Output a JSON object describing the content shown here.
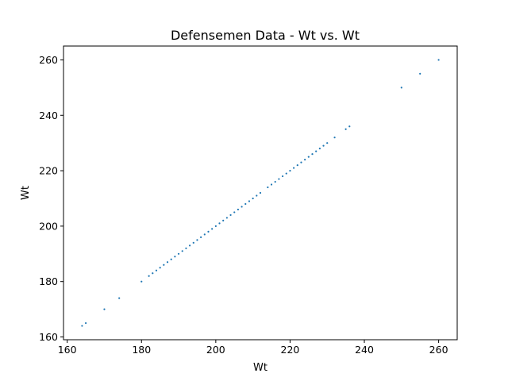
{
  "chart_data": {
    "type": "scatter",
    "title": "Defensemen Data - Wt vs. Wt",
    "xlabel": "Wt",
    "ylabel": "Wt",
    "xlim": [
      159,
      265
    ],
    "ylim": [
      159,
      265
    ],
    "xticks": [
      160,
      180,
      200,
      220,
      240,
      260
    ],
    "yticks": [
      160,
      180,
      200,
      220,
      240,
      260
    ],
    "grid": false,
    "legend": "none",
    "point_color": "#1f77b4",
    "series": [
      {
        "x": [
          164,
          165,
          170,
          174,
          180,
          182,
          183,
          184,
          185,
          186,
          187,
          188,
          189,
          190,
          191,
          192,
          193,
          194,
          195,
          196,
          197,
          198,
          199,
          200,
          201,
          202,
          203,
          204,
          205,
          206,
          207,
          208,
          209,
          210,
          211,
          212,
          214,
          215,
          216,
          217,
          218,
          219,
          220,
          221,
          222,
          223,
          224,
          225,
          226,
          227,
          228,
          229,
          230,
          232,
          235,
          236,
          250,
          255,
          260
        ],
        "y": [
          164,
          165,
          170,
          174,
          180,
          182,
          183,
          184,
          185,
          186,
          187,
          188,
          189,
          190,
          191,
          192,
          193,
          194,
          195,
          196,
          197,
          198,
          199,
          200,
          201,
          202,
          203,
          204,
          205,
          206,
          207,
          208,
          209,
          210,
          211,
          212,
          214,
          215,
          216,
          217,
          218,
          219,
          220,
          221,
          222,
          223,
          224,
          225,
          226,
          227,
          228,
          229,
          230,
          232,
          235,
          236,
          250,
          255,
          260
        ]
      }
    ]
  }
}
